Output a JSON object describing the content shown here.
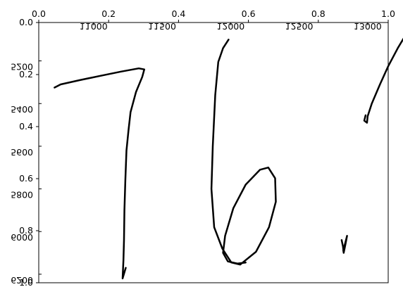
{
  "chart_data": [
    {
      "type": "line",
      "title": "",
      "xlabel": "",
      "ylabel": "",
      "xlim": [
        0.0,
        1.0
      ],
      "ylim": [
        1.0,
        0.0
      ],
      "x_axis_position": "top",
      "y_axis_position": "left",
      "y_inverted": true,
      "grid": false,
      "x_ticks": [
        "0.0",
        "0.2",
        "0.4",
        "0.6",
        "0.8",
        "1.0"
      ],
      "y_ticks": [
        "0.0",
        "0.2",
        "0.4",
        "0.6",
        "0.8",
        "1.0"
      ]
    },
    {
      "type": "line",
      "title": "",
      "xlabel": "",
      "ylabel": "",
      "xlim": [
        10600,
        13150
      ],
      "ylim": [
        6240,
        5020
      ],
      "x_axis_position": "top",
      "y_axis_position": "left",
      "y_inverted": true,
      "mirrored": true,
      "grid": false,
      "x_ticks": [
        11000,
        11500,
        12000,
        12500,
        13000
      ],
      "x_tick_labels": [
        "11000",
        "11500",
        "12000",
        "12500",
        "13000"
      ],
      "y_ticks": [
        5200,
        5400,
        5600,
        5800,
        6000,
        6200
      ],
      "y_tick_labels": [
        "5200",
        "5400",
        "5600",
        "5800",
        "6000",
        "6200"
      ],
      "series": [
        {
          "stroke": "digit-7",
          "points": [
            [
              10715,
              5325
            ],
            [
              10760,
              5310
            ],
            [
              10900,
              5290
            ],
            [
              11050,
              5270
            ],
            [
              11200,
              5250
            ],
            [
              11330,
              5235
            ],
            [
              11370,
              5240
            ],
            [
              11355,
              5275
            ],
            [
              11310,
              5345
            ],
            [
              11270,
              5440
            ],
            [
              11255,
              5525
            ],
            [
              11240,
              5620
            ],
            [
              11232,
              5760
            ],
            [
              11225,
              5900
            ],
            [
              11222,
              6040
            ],
            [
              11218,
              6135
            ],
            [
              11212,
              6220
            ],
            [
              11235,
              6170
            ]
          ]
        },
        {
          "stroke": "digit-6",
          "points": [
            [
              11985,
              5100
            ],
            [
              11945,
              5140
            ],
            [
              11910,
              5205
            ],
            [
              11888,
              5360
            ],
            [
              11870,
              5600
            ],
            [
              11860,
              5800
            ],
            [
              11880,
              5980
            ],
            [
              11940,
              6080
            ],
            [
              12005,
              6145
            ],
            [
              12070,
              6155
            ],
            [
              12185,
              6095
            ],
            [
              12280,
              5980
            ],
            [
              12330,
              5860
            ],
            [
              12325,
              5750
            ],
            [
              12275,
              5700
            ],
            [
              12215,
              5710
            ],
            [
              12110,
              5780
            ],
            [
              12020,
              5890
            ],
            [
              11960,
              6020
            ],
            [
              11945,
              6100
            ],
            [
              11980,
              6140
            ],
            [
              12050,
              6150
            ],
            [
              12110,
              6145
            ]
          ]
        },
        {
          "stroke": "decimal-point",
          "points": [
            [
              12810,
              6040
            ],
            [
              12820,
              6070
            ],
            [
              12825,
              6100
            ],
            [
              12838,
              6060
            ],
            [
              12850,
              6020
            ],
            [
              12838,
              6050
            ],
            [
              12822,
              6090
            ]
          ]
        },
        {
          "stroke": "digit-1",
          "points": [
            [
              12985,
              5455
            ],
            [
              12975,
              5480
            ],
            [
              12995,
              5490
            ],
            [
              13000,
              5460
            ],
            [
              13030,
              5400
            ],
            [
              13090,
              5310
            ],
            [
              13150,
              5225
            ],
            [
              13220,
              5140
            ],
            [
              13285,
              5070
            ],
            [
              13320,
              5010
            ],
            [
              13330,
              5020
            ],
            [
              13320,
              5200
            ],
            [
              13312,
              5400
            ],
            [
              13305,
              5600
            ],
            [
              13300,
              5800
            ],
            [
              13300,
              5960
            ],
            [
              13310,
              6010
            ],
            [
              13315,
              6040
            ],
            [
              13305,
              5990
            ]
          ]
        }
      ]
    }
  ]
}
